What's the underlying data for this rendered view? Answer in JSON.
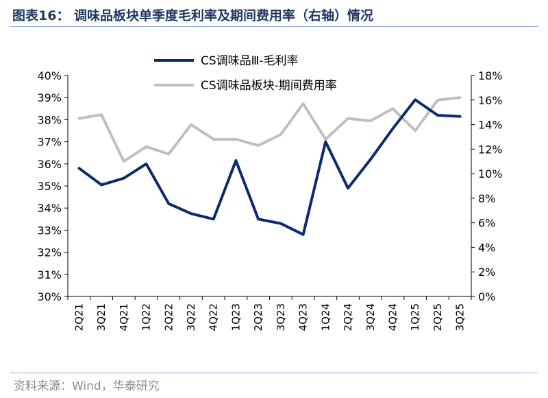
{
  "header": {
    "title": "图表16：  调味品板块单季度毛利率及期间费用率（右轴）情况"
  },
  "footer": {
    "source": "资料来源：Wind，华泰研究"
  },
  "chart_data": {
    "type": "line",
    "categories": [
      "2Q21",
      "3Q21",
      "4Q21",
      "1Q22",
      "2Q22",
      "3Q22",
      "4Q22",
      "1Q23",
      "2Q23",
      "3Q23",
      "4Q23",
      "1Q24",
      "2Q24",
      "3Q24",
      "4Q24",
      "1Q25",
      "2Q25",
      "3Q25"
    ],
    "series": [
      {
        "name": "CS调味品Ⅲ-毛利率",
        "axis": "left",
        "color": "#0b2a6f",
        "values": [
          35.8,
          35.05,
          35.35,
          36.0,
          34.2,
          33.75,
          33.5,
          36.15,
          33.5,
          33.3,
          32.8,
          37.0,
          34.9,
          36.2,
          37.6,
          38.9,
          38.2,
          38.15
        ]
      },
      {
        "name": "CS调味品板块-期间费用率",
        "axis": "right",
        "color": "#bfbfbf",
        "values": [
          14.5,
          14.8,
          11.0,
          12.2,
          11.6,
          14.0,
          12.8,
          12.8,
          12.3,
          13.2,
          15.7,
          12.8,
          14.5,
          14.3,
          15.3,
          13.5,
          16.0,
          16.2
        ]
      }
    ],
    "y_left": {
      "lim": [
        30,
        40
      ],
      "ticks": [
        "30%",
        "31%",
        "32%",
        "33%",
        "34%",
        "35%",
        "36%",
        "37%",
        "38%",
        "39%",
        "40%"
      ]
    },
    "y_right": {
      "lim": [
        0,
        18
      ],
      "ticks": [
        "0%",
        "2%",
        "4%",
        "6%",
        "8%",
        "10%",
        "12%",
        "14%",
        "16%",
        "18%"
      ]
    },
    "legend_position": "top-center",
    "grid": false
  }
}
